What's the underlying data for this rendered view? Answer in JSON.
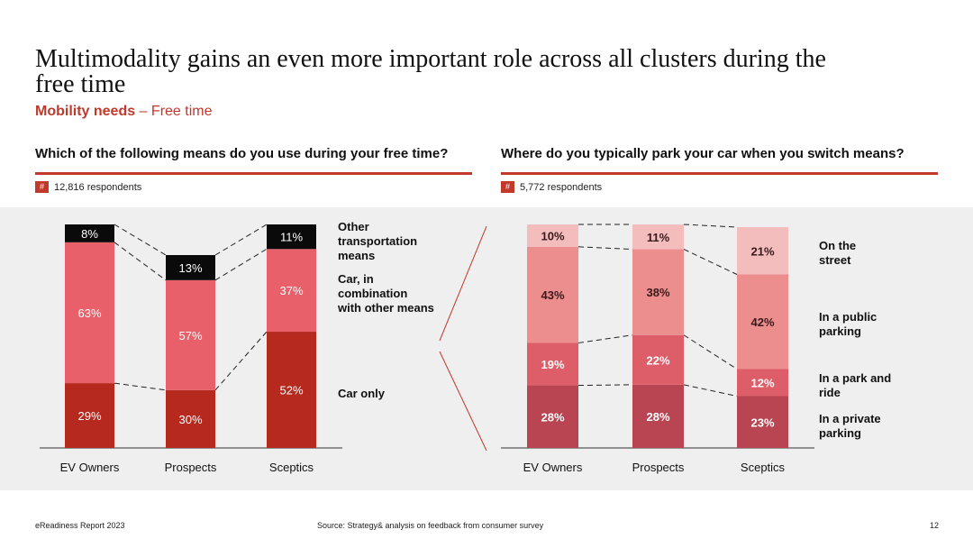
{
  "title": "Multimodality gains an even more important role across all clusters during the free time",
  "subtitle": {
    "bold": "Mobility needs",
    "rest": " – Free time"
  },
  "left": {
    "question": "Which of the following means do you use during your free time?",
    "respondents": "12,816 respondents",
    "hash": "#"
  },
  "right": {
    "question": "Where do you typically park your car when you switch means?",
    "respondents": "5,772 respondents",
    "hash": "#"
  },
  "footer": {
    "left": "eReadiness Report 2023",
    "source": "Source: Strategy& analysis on feedback from consumer survey",
    "page": "12"
  },
  "chart_data": [
    {
      "type": "bar",
      "stacked": true,
      "categories": [
        "EV Owners",
        "Prospects",
        "Sceptics"
      ],
      "series": [
        {
          "name": "Car only",
          "values": [
            29,
            30,
            52
          ],
          "labels": [
            "29%",
            "30%",
            "52%"
          ],
          "color": "#b5291f"
        },
        {
          "name": "Car, in combination with other means",
          "values": [
            63,
            57,
            37
          ],
          "labels": [
            "63%",
            "57%",
            "37%"
          ],
          "color": "#e8606a"
        },
        {
          "name": "Other transportation means",
          "values": [
            8,
            13,
            11
          ],
          "labels": [
            "8%",
            "13%",
            "11%"
          ],
          "color": "#0a0a0a"
        }
      ],
      "legend": [
        {
          "lines": [
            "Other",
            "transportation",
            "means"
          ]
        },
        {
          "lines": [
            "Car, in",
            "combination",
            "with other means"
          ]
        },
        {
          "lines": [
            "Car only"
          ]
        }
      ]
    },
    {
      "type": "bar",
      "stacked": true,
      "categories": [
        "EV Owners",
        "Prospects",
        "Sceptics"
      ],
      "series": [
        {
          "name": "In a private parking",
          "values": [
            28,
            28,
            23
          ],
          "labels": [
            "28%",
            "28%",
            "23%"
          ],
          "color": "#b94452"
        },
        {
          "name": "In a park and ride",
          "values": [
            19,
            22,
            12
          ],
          "labels": [
            "19%",
            "22%",
            "12%"
          ],
          "color": "#dd5e69"
        },
        {
          "name": "In a public parking",
          "values": [
            43,
            38,
            42
          ],
          "labels": [
            "43%",
            "38%",
            "42%"
          ],
          "color": "#ec8d8e"
        },
        {
          "name": "On the street",
          "values": [
            10,
            11,
            21
          ],
          "labels": [
            "10%",
            "11%",
            "21%"
          ],
          "color": "#f3bcbd"
        }
      ],
      "legend": [
        {
          "lines": [
            "On the",
            "street"
          ]
        },
        {
          "lines": [
            "In a public",
            "parking"
          ]
        },
        {
          "lines": [
            "In a park and",
            "ride"
          ]
        },
        {
          "lines": [
            "In a private",
            "parking"
          ]
        }
      ]
    }
  ]
}
